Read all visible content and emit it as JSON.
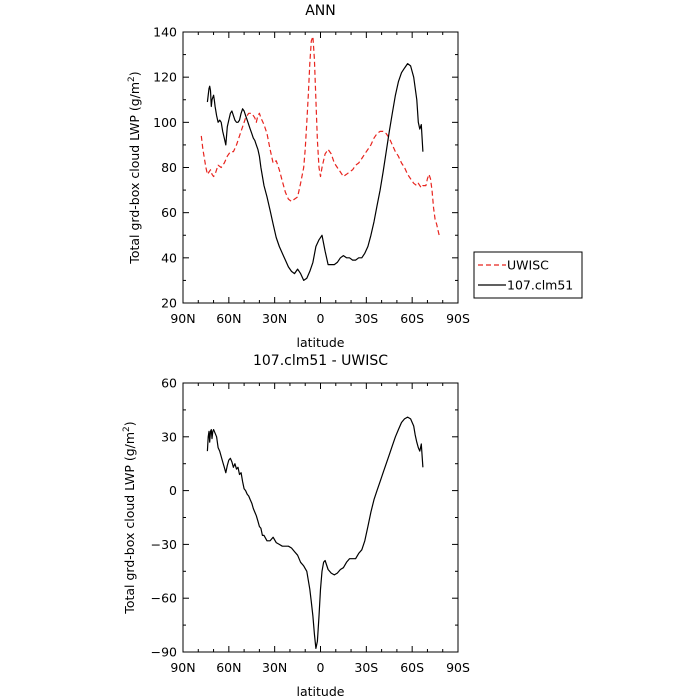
{
  "chart_data": [
    {
      "type": "line",
      "title": "ANN",
      "xlabel": "latitude",
      "ylabel": "Total grd-box cloud LWP (g/m²)",
      "ylabel_main": "Total grd-box cloud LWP (g/m",
      "ylabel_exp": "2",
      "ylabel_tail": ")",
      "xlim": [
        90,
        -90
      ],
      "ylim": [
        20,
        140
      ],
      "xticks": [
        90,
        60,
        30,
        0,
        -30,
        -60,
        -90
      ],
      "xtick_labels": [
        "90N",
        "60N",
        "30N",
        "0",
        "30S",
        "60S",
        "90S"
      ],
      "yticks": [
        20,
        40,
        60,
        80,
        100,
        120,
        140
      ],
      "ytick_labels": [
        "20",
        "40",
        "60",
        "80",
        "100",
        "120",
        "140"
      ],
      "grid": false,
      "legend_position": "right",
      "series": [
        {
          "name": "UWISC",
          "color": "#e8251f",
          "dash": "dashed",
          "x": [
            78,
            77,
            76,
            75,
            74,
            73,
            72,
            71,
            70,
            69,
            67,
            65,
            63,
            61,
            59,
            57,
            55,
            53,
            51,
            49,
            47,
            45,
            43,
            42,
            41,
            40,
            39,
            37,
            35,
            33,
            31,
            29,
            27,
            25,
            23,
            21,
            19,
            17,
            15,
            13,
            11,
            10,
            9,
            8,
            7,
            6,
            5,
            4,
            3,
            2,
            1,
            0,
            -1,
            -3,
            -5,
            -7,
            -9,
            -11,
            -13,
            -15,
            -17,
            -19,
            -21,
            -23,
            -25,
            -27,
            -29,
            -31,
            -33,
            -35,
            -37,
            -39,
            -41,
            -43,
            -45,
            -47,
            -49,
            -51,
            -53,
            -55,
            -57,
            -59,
            -61,
            -63,
            -64,
            -65,
            -66,
            -67,
            -68,
            -69,
            -70,
            -71,
            -72,
            -73,
            -74,
            -75,
            -76,
            -77,
            -78
          ],
          "values": [
            94,
            88,
            84,
            80,
            77,
            78,
            79,
            77,
            76,
            77,
            81,
            80,
            82,
            85,
            87,
            87,
            90,
            94,
            98,
            102,
            104,
            104,
            102,
            100,
            103,
            104,
            102,
            99,
            95,
            88,
            82,
            83,
            79,
            74,
            69,
            66,
            65,
            66,
            67,
            73,
            80,
            88,
            100,
            112,
            126,
            136,
            138,
            128,
            110,
            92,
            80,
            76,
            80,
            86,
            88,
            86,
            82,
            80,
            78,
            76,
            77,
            78,
            79,
            81,
            82,
            84,
            86,
            88,
            90,
            93,
            95,
            96,
            96,
            95,
            93,
            90,
            87,
            85,
            82,
            80,
            77,
            75,
            73,
            72,
            73,
            72,
            71,
            72,
            72,
            72,
            75,
            77,
            75,
            70,
            62,
            57,
            55,
            52,
            49
          ]
        },
        {
          "name": "107.clm51",
          "color": "#000000",
          "dash": "solid",
          "x": [
            74,
            73,
            72.5,
            72,
            71.5,
            71,
            70,
            69.5,
            69,
            68,
            67,
            66,
            65,
            64,
            63,
            62,
            61,
            60,
            59,
            58,
            57,
            56,
            55,
            54,
            53,
            52,
            51,
            50,
            49,
            48,
            47,
            46,
            45,
            44,
            43,
            42,
            41,
            40,
            39,
            37,
            35,
            33,
            31,
            29,
            27,
            25,
            23,
            21,
            19,
            17,
            15,
            13,
            11,
            9,
            7,
            5,
            3,
            1,
            -1,
            -3,
            -5,
            -7,
            -9,
            -11,
            -13,
            -15,
            -17,
            -19,
            -21,
            -23,
            -25,
            -27,
            -29,
            -31,
            -33,
            -35,
            -37,
            -39,
            -41,
            -43,
            -45,
            -47,
            -49,
            -51,
            -53,
            -55,
            -57,
            -59,
            -61,
            -63,
            -64,
            -65,
            -66,
            -67
          ],
          "values": [
            109,
            115,
            116,
            114,
            107,
            110,
            112,
            110,
            107,
            103,
            100,
            101,
            100,
            96,
            93,
            90,
            98,
            101,
            104,
            105,
            103,
            101,
            100,
            100,
            101,
            104,
            106,
            105,
            103,
            101,
            99,
            97,
            95,
            93,
            92,
            90,
            88,
            85,
            80,
            72,
            67,
            61,
            55,
            49,
            45,
            42,
            39,
            36,
            34,
            33,
            35,
            33,
            30,
            31,
            34,
            38,
            45,
            48,
            50,
            43,
            37,
            37,
            37,
            38,
            40,
            41,
            40,
            40,
            39,
            39,
            40,
            40,
            42,
            45,
            50,
            56,
            63,
            70,
            78,
            87,
            96,
            104,
            112,
            118,
            122,
            124,
            126,
            125,
            120,
            110,
            100,
            97,
            99,
            87
          ]
        }
      ]
    },
    {
      "type": "line",
      "title": "107.clm51 - UWISC",
      "xlabel": "latitude",
      "ylabel": "Total grd-box cloud LWP (g/m²)",
      "ylabel_main": "Total grd-box cloud LWP (g/m",
      "ylabel_exp": "2",
      "ylabel_tail": ")",
      "xlim": [
        90,
        -90
      ],
      "ylim": [
        -90,
        60
      ],
      "xticks": [
        90,
        60,
        30,
        0,
        -30,
        -60,
        -90
      ],
      "xtick_labels": [
        "90N",
        "60N",
        "30N",
        "0",
        "30S",
        "60S",
        "90S"
      ],
      "yticks": [
        -90,
        -60,
        -30,
        0,
        30,
        60
      ],
      "ytick_labels": [
        "−90",
        "−60",
        "−30",
        "0",
        "30",
        "60"
      ],
      "grid": false,
      "series": [
        {
          "color": "#000000",
          "dash": "solid",
          "x": [
            74,
            73.5,
            73,
            72.5,
            72,
            71.5,
            71,
            70.5,
            70,
            69,
            68,
            67,
            66,
            65,
            64,
            63,
            62,
            61,
            60,
            59,
            58,
            57,
            56,
            55,
            54,
            53,
            52,
            51,
            50,
            49,
            48,
            47,
            46,
            45,
            44,
            43,
            42,
            41,
            40,
            39,
            38,
            37,
            35,
            33,
            31,
            29,
            27,
            25,
            23,
            21,
            19,
            17,
            15,
            13,
            11,
            9,
            8,
            7,
            6,
            5,
            4,
            3,
            2,
            1,
            0,
            -1,
            -2,
            -3,
            -5,
            -7,
            -9,
            -11,
            -13,
            -15,
            -17,
            -19,
            -21,
            -23,
            -25,
            -27,
            -29,
            -31,
            -33,
            -35,
            -37,
            -39,
            -41,
            -43,
            -45,
            -47,
            -49,
            -51,
            -53,
            -55,
            -57,
            -59,
            -61,
            -62,
            -63,
            -64,
            -65,
            -66,
            -67
          ],
          "values": [
            22,
            30,
            33,
            27,
            33,
            34,
            29,
            33,
            34,
            32,
            30,
            24,
            22,
            19,
            16,
            13,
            10,
            14,
            17,
            18,
            16,
            13,
            15,
            12,
            13,
            9,
            10,
            5,
            1,
            0,
            -2,
            -3,
            -5,
            -7,
            -10,
            -12,
            -14,
            -17,
            -20,
            -21,
            -25,
            -25,
            -28,
            -28,
            -26,
            -29,
            -30,
            -31,
            -31,
            -31,
            -32,
            -34,
            -36,
            -40,
            -42,
            -45,
            -50,
            -55,
            -62,
            -70,
            -80,
            -88,
            -84,
            -70,
            -55,
            -45,
            -40,
            -39,
            -44,
            -46,
            -47,
            -46,
            -44,
            -43,
            -40,
            -38,
            -38,
            -38,
            -35,
            -33,
            -28,
            -20,
            -12,
            -5,
            0,
            5,
            10,
            15,
            20,
            25,
            30,
            34,
            38,
            40,
            41,
            40,
            36,
            31,
            27,
            24,
            22,
            26,
            13
          ]
        }
      ]
    }
  ]
}
